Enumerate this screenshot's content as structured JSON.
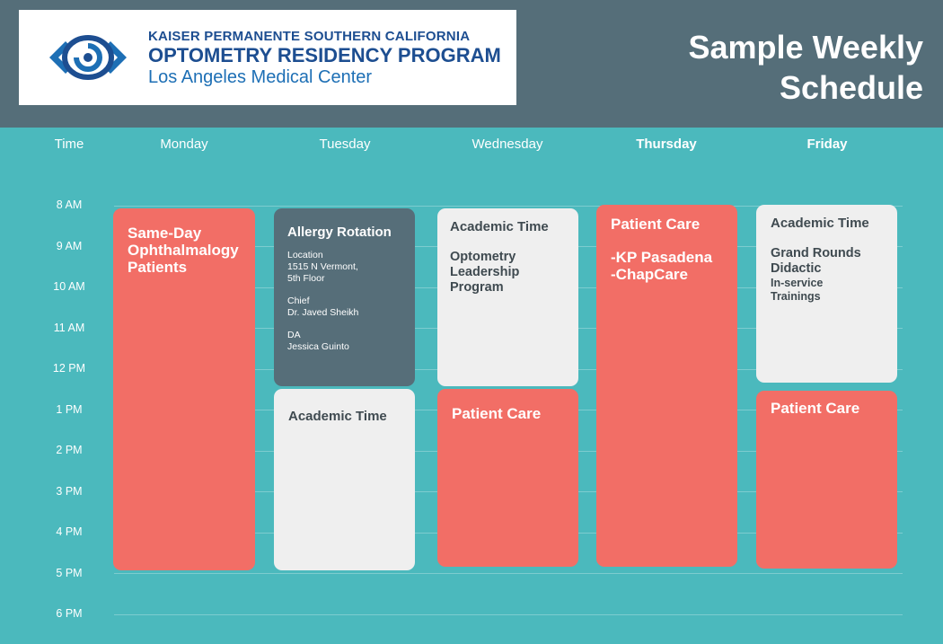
{
  "logo": {
    "line1": "KAISER PERMANENTE SOUTHERN CALIFORNIA",
    "line2": "OPTOMETRY RESIDENCY PROGRAM",
    "line3": "Los Angeles Medical Center",
    "icon": "eye-logo-icon",
    "colors": {
      "dark_blue": "#1d4e91",
      "mid_blue": "#1d6fb5"
    }
  },
  "title": {
    "line1": "Sample Weekly",
    "line2": "Schedule"
  },
  "columns": {
    "time": "Time",
    "monday": "Monday",
    "tuesday": "Tuesday",
    "wednesday": "Wednesday",
    "thursday": "Thursday",
    "friday": "Friday"
  },
  "times": [
    "8 AM",
    "9 AM",
    "10 AM",
    "11 AM",
    "12 PM",
    "1 PM",
    "2 PM",
    "3 PM",
    "4 PM",
    "5 PM",
    "6 PM"
  ],
  "schedule": {
    "monday": {
      "block1": {
        "line1": "Same-Day",
        "line2": "Ophthalmalogy",
        "line3": "Patients"
      }
    },
    "tuesday": {
      "block1": {
        "title": "Allergy Rotation",
        "location_label": "Location",
        "location_line1": "1515 N Vermont,",
        "location_line2": "5th Floor",
        "chief_label": "Chief",
        "chief_name": "Dr. Javed Sheikh",
        "da_label": "DA",
        "da_name": "Jessica Guinto"
      },
      "block2": {
        "title": "Academic Time"
      }
    },
    "wednesday": {
      "block1": {
        "title": "Academic Time",
        "line1": "Optometry",
        "line2": "Leadership",
        "line3": "Program"
      },
      "block2": {
        "title": "Patient Care"
      }
    },
    "thursday": {
      "block1": {
        "title": "Patient Care",
        "line1": "-KP Pasadena",
        "line2": "-ChapCare"
      }
    },
    "friday": {
      "block1": {
        "title": "Academic Time",
        "line1": "Grand Rounds",
        "line2": "Didactic",
        "line3": "In-service",
        "line4": "Trainings"
      },
      "block2": {
        "title": "Patient Care"
      }
    }
  },
  "colors": {
    "background": "#4bb9bd",
    "header": "#556e79",
    "patient_care": "#f26e66",
    "academic": "#efefef",
    "rotation": "#566e79"
  }
}
